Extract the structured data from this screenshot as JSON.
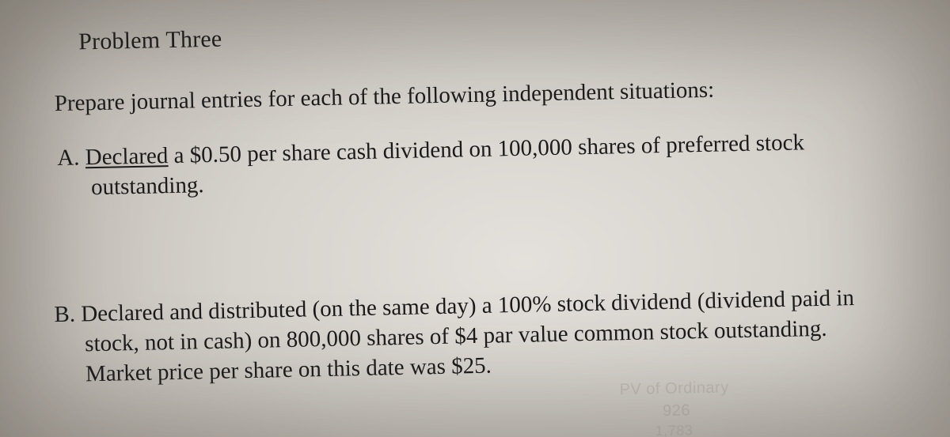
{
  "background": {
    "center_color": "#e4e0db",
    "mid_color": "#d6d2cc",
    "edge_color": "#9f9a92",
    "rotation_deg": -1.2
  },
  "text_color": "#1b1b1b",
  "font_family": "Times New Roman",
  "title": {
    "text": "Problem Three",
    "fontsize": 30
  },
  "instruction": {
    "text": "Prepare journal entries for each of the following independent situations:",
    "fontsize": 29
  },
  "items": {
    "A": {
      "marker": "A. ",
      "underlined_word": "Declared",
      "line1_rest": " a $0.50 per share cash dividend on 100,000 shares of preferred stock",
      "line2": "outstanding.",
      "fontsize": 29
    },
    "B": {
      "marker": "B. ",
      "line1": "Declared and distributed (on the same day) a 100% stock dividend (dividend paid in",
      "line2": "stock, not in cash) on 800,000 shares of $4 par value common stock outstanding.",
      "line3": "Market price per share on this date was $25.",
      "fontsize": 29
    }
  },
  "ghost_text": {
    "g1": "PV of Ordinary",
    "g2": "926",
    "g3": "1,783",
    "color": "#8d887f",
    "opacity": 0.25
  }
}
